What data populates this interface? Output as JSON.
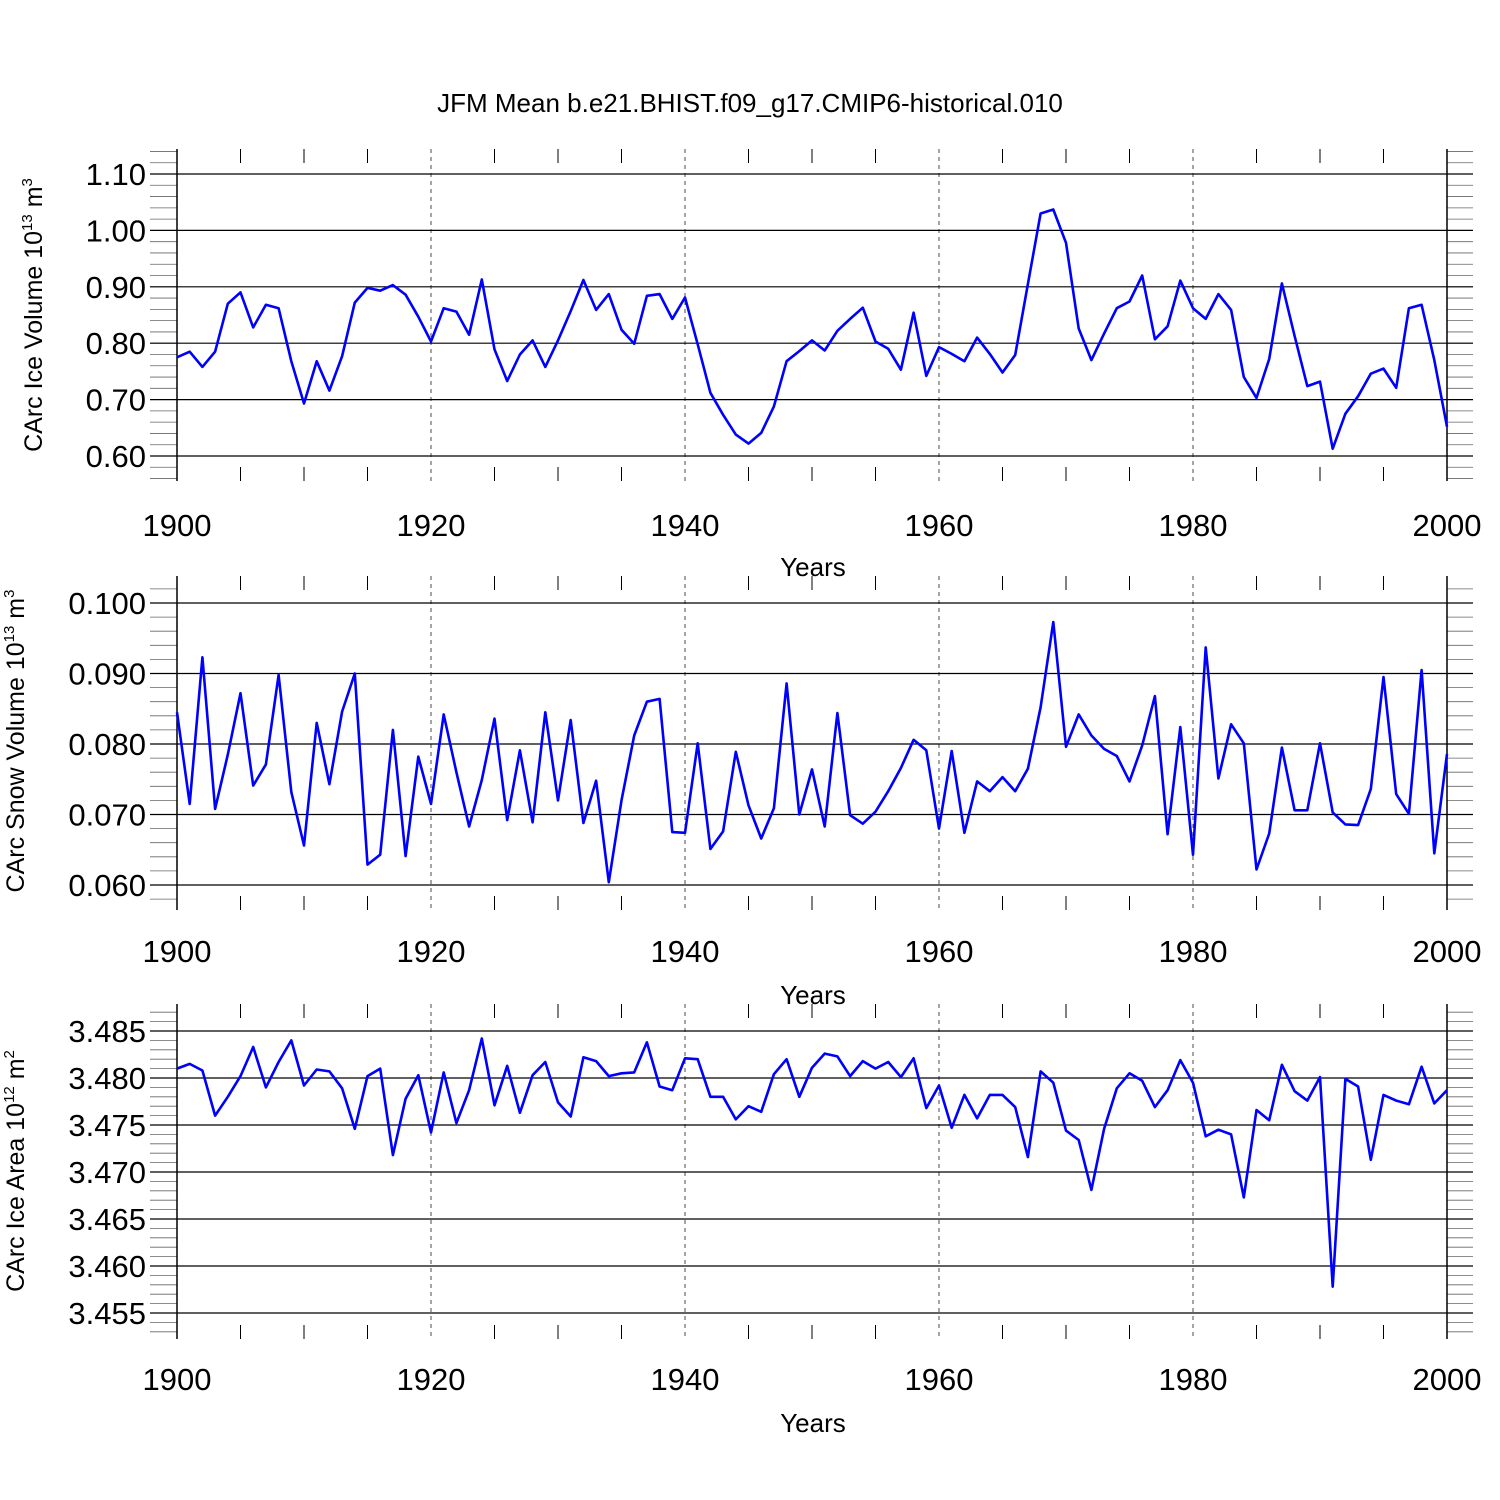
{
  "title": "JFM Mean b.e21.BHIST.f09_g17.CMIP6-historical.010",
  "colors": {
    "line": "#0000ff",
    "axis": "#000000",
    "grid": "#000000"
  },
  "chart_data": [
    {
      "type": "line",
      "title": "JFM Mean b.e21.BHIST.f09_g17.CMIP6-historical.010",
      "xlabel": "Years",
      "ylabel": {
        "text": "CArc Ice Volume 10",
        "exp": "13",
        "unit": " m",
        "unit_exp": "3"
      },
      "xlim": [
        1900,
        2000
      ],
      "ylim": [
        0.555,
        1.145
      ],
      "yticks": [
        "0.60",
        "0.70",
        "0.80",
        "0.90",
        "1.00",
        "1.10"
      ],
      "xticks": [
        "1900",
        "1920",
        "1940",
        "1960",
        "1980",
        "2000"
      ],
      "grid_x": [
        1920,
        1940,
        1960,
        1980
      ],
      "series": [
        {
          "name": "CArc Ice Volume",
          "x_start": 1900,
          "values": [
            0.775,
            0.785,
            0.758,
            0.785,
            0.87,
            0.89,
            0.828,
            0.868,
            0.862,
            0.768,
            0.693,
            0.768,
            0.716,
            0.777,
            0.872,
            0.898,
            0.893,
            0.903,
            0.886,
            0.847,
            0.803,
            0.862,
            0.856,
            0.815,
            0.913,
            0.789,
            0.733,
            0.78,
            0.805,
            0.758,
            0.805,
            0.857,
            0.912,
            0.859,
            0.887,
            0.824,
            0.799,
            0.884,
            0.887,
            0.843,
            0.881,
            0.798,
            0.712,
            0.673,
            0.638,
            0.622,
            0.641,
            0.688,
            0.768,
            0.786,
            0.805,
            0.787,
            0.822,
            0.843,
            0.863,
            0.803,
            0.79,
            0.753,
            0.854,
            0.742,
            0.793,
            0.781,
            0.768,
            0.81,
            0.781,
            0.748,
            0.779,
            0.905,
            1.03,
            1.037,
            0.978,
            0.826,
            0.77,
            0.817,
            0.862,
            0.874,
            0.92,
            0.807,
            0.83,
            0.911,
            0.862,
            0.843,
            0.887,
            0.859,
            0.74,
            0.703,
            0.772,
            0.906,
            0.813,
            0.724,
            0.732,
            0.613,
            0.675,
            0.706,
            0.746,
            0.755,
            0.721,
            0.862,
            0.868,
            0.77,
            0.652
          ]
        }
      ]
    },
    {
      "type": "line",
      "title": "",
      "xlabel": "Years",
      "ylabel": {
        "text": "CArc Snow Volume 10",
        "exp": "13",
        "unit": " m",
        "unit_exp": "3"
      },
      "xlim": [
        1900,
        2000
      ],
      "ylim": [
        0.0565,
        0.1037
      ],
      "yticks": [
        "0.060",
        "0.070",
        "0.080",
        "0.090",
        "0.100"
      ],
      "xticks": [
        "1900",
        "1920",
        "1940",
        "1960",
        "1980",
        "2000"
      ],
      "grid_x": [
        1920,
        1940,
        1960,
        1980
      ],
      "series": [
        {
          "name": "CArc Snow Volume",
          "x_start": 1900,
          "values": [
            0.0845,
            0.0715,
            0.0923,
            0.0708,
            0.0785,
            0.0872,
            0.0741,
            0.0771,
            0.0898,
            0.0732,
            0.0656,
            0.083,
            0.0743,
            0.0846,
            0.09,
            0.0629,
            0.0643,
            0.082,
            0.0641,
            0.0782,
            0.0715,
            0.0842,
            0.076,
            0.0683,
            0.0749,
            0.0836,
            0.0692,
            0.0791,
            0.0689,
            0.0845,
            0.072,
            0.0834,
            0.0688,
            0.0748,
            0.0604,
            0.072,
            0.0812,
            0.086,
            0.0864,
            0.0675,
            0.0674,
            0.0801,
            0.0651,
            0.0676,
            0.0789,
            0.0713,
            0.0666,
            0.0709,
            0.0886,
            0.07,
            0.0764,
            0.0683,
            0.0844,
            0.0699,
            0.0687,
            0.0704,
            0.0733,
            0.0766,
            0.0806,
            0.0791,
            0.068,
            0.079,
            0.0674,
            0.0747,
            0.0733,
            0.0753,
            0.0733,
            0.0765,
            0.0852,
            0.0973,
            0.0796,
            0.0842,
            0.0812,
            0.0793,
            0.0783,
            0.0747,
            0.0798,
            0.0868,
            0.0672,
            0.0824,
            0.0643,
            0.0937,
            0.0751,
            0.0828,
            0.0801,
            0.0622,
            0.0673,
            0.0795,
            0.0706,
            0.0706,
            0.0801,
            0.0703,
            0.0686,
            0.0685,
            0.0736,
            0.0895,
            0.0729,
            0.0701,
            0.0905,
            0.0645,
            0.0786
          ]
        }
      ]
    },
    {
      "type": "line",
      "title": "",
      "xlabel": "Years",
      "ylabel": {
        "text": "CArc Ice Area 10",
        "exp": "12",
        "unit": " m",
        "unit_exp": "2"
      },
      "xlim": [
        1900,
        2000
      ],
      "ylim": [
        3.4527,
        3.4877
      ],
      "yticks": [
        "3.455",
        "3.460",
        "3.465",
        "3.470",
        "3.475",
        "3.480",
        "3.485"
      ],
      "xticks": [
        "1900",
        "1920",
        "1940",
        "1960",
        "1980",
        "2000"
      ],
      "grid_x": [
        1920,
        1940,
        1960,
        1980
      ],
      "series": [
        {
          "name": "CArc Ice Area",
          "x_start": 1900,
          "values": [
            3.481,
            3.4815,
            3.4808,
            3.476,
            3.478,
            3.4802,
            3.4833,
            3.479,
            3.4817,
            3.484,
            3.4792,
            3.4809,
            3.4807,
            3.4789,
            3.4746,
            3.4802,
            3.481,
            3.4718,
            3.4778,
            3.4803,
            3.4742,
            3.4806,
            3.4752,
            3.4787,
            3.4842,
            3.4771,
            3.4813,
            3.4763,
            3.4803,
            3.4817,
            3.4774,
            3.4759,
            3.4822,
            3.4818,
            3.4802,
            3.4805,
            3.4806,
            3.4838,
            3.4791,
            3.4787,
            3.4821,
            3.482,
            3.478,
            3.478,
            3.4756,
            3.477,
            3.4764,
            3.4804,
            3.482,
            3.478,
            3.4811,
            3.4826,
            3.4823,
            3.4802,
            3.4818,
            3.481,
            3.4817,
            3.4801,
            3.4821,
            3.4768,
            3.4792,
            3.4747,
            3.4782,
            3.4757,
            3.4782,
            3.4782,
            3.4769,
            3.4716,
            3.4807,
            3.4795,
            3.4744,
            3.4734,
            3.4681,
            3.4746,
            3.4789,
            3.4805,
            3.4797,
            3.4769,
            3.4787,
            3.4819,
            3.4795,
            3.4738,
            3.4745,
            3.474,
            3.4673,
            3.4766,
            3.4755,
            3.4814,
            3.4786,
            3.4776,
            3.4801,
            3.4578,
            3.4799,
            3.4791,
            3.4713,
            3.4782,
            3.4776,
            3.4772,
            3.4812,
            3.4773,
            3.4787
          ]
        }
      ]
    }
  ]
}
